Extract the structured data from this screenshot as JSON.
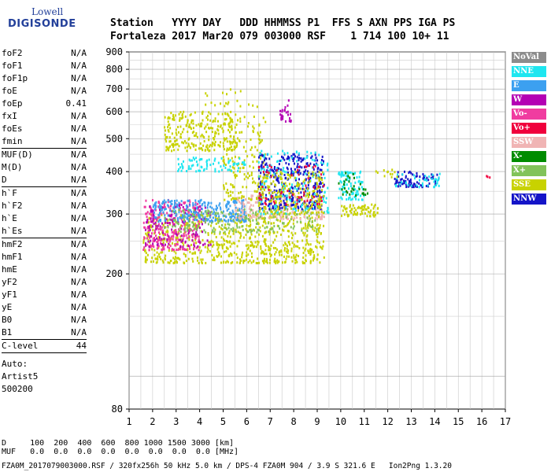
{
  "logo": {
    "line1": "Lowell",
    "line2": "DIGISONDE"
  },
  "header": {
    "line1": "Station   YYYY DAY   DDD HHMMSS P1  FFS S AXN PPS IGA PS",
    "line2": "Fortaleza 2017 Mar20 079 003000 RSF    1 714 100 10+ 11"
  },
  "params": {
    "group1": [
      {
        "k": "foF2",
        "v": "N/A"
      },
      {
        "k": "foF1",
        "v": "N/A"
      },
      {
        "k": "foF1p",
        "v": "N/A"
      },
      {
        "k": "foE",
        "v": "N/A"
      },
      {
        "k": "foEp",
        "v": "0.41"
      },
      {
        "k": "fxI",
        "v": "N/A"
      },
      {
        "k": "foEs",
        "v": "N/A"
      },
      {
        "k": "fmin",
        "v": "N/A"
      }
    ],
    "group2": [
      {
        "k": "MUF(D)",
        "v": "N/A"
      },
      {
        "k": "M(D)",
        "v": "N/A"
      },
      {
        "k": "D",
        "v": "N/A"
      }
    ],
    "group3": [
      {
        "k": "h`F",
        "v": "N/A"
      },
      {
        "k": "h`F2",
        "v": "N/A"
      },
      {
        "k": "h`E",
        "v": "N/A"
      },
      {
        "k": "h`Es",
        "v": "N/A"
      }
    ],
    "group4": [
      {
        "k": "hmF2",
        "v": "N/A"
      },
      {
        "k": "hmF1",
        "v": "N/A"
      },
      {
        "k": "hmE",
        "v": "N/A"
      },
      {
        "k": "yF2",
        "v": "N/A"
      },
      {
        "k": "yF1",
        "v": "N/A"
      },
      {
        "k": "yE",
        "v": "N/A"
      },
      {
        "k": "B0",
        "v": "N/A"
      },
      {
        "k": "B1",
        "v": "N/A"
      }
    ],
    "clevel": {
      "k": "C-level",
      "v": "44"
    },
    "auto": [
      "Auto:",
      "Artist5",
      "500200"
    ]
  },
  "footer": {
    "line1": "D     100  200  400  600  800 1000 1500 3000 [km]",
    "line2": "MUF   0.0  0.0  0.0  0.0  0.0  0.0  0.0  0.0 [MHz]",
    "line3": "FZA0M_2017079003000.RSF / 320fx256h 50 kHz 5.0 km / DPS-4 FZA0M 904 / 3.9 S 321.6 E   Ion2Png 1.3.20"
  },
  "legend": [
    {
      "label": "NoVal",
      "color": "#8c8c8c"
    },
    {
      "label": "NNE",
      "color": "#1ee6f0"
    },
    {
      "label": "E",
      "color": "#3ca0f0"
    },
    {
      "label": "W",
      "color": "#b400b4"
    },
    {
      "label": "Vo-",
      "color": "#f03ca0"
    },
    {
      "label": "Vo+",
      "color": "#f0003c"
    },
    {
      "label": "SSW",
      "color": "#f0b4b4"
    },
    {
      "label": "X-",
      "color": "#008c00"
    },
    {
      "label": "X+",
      "color": "#82c35a"
    },
    {
      "label": "SSE",
      "color": "#c8d200"
    },
    {
      "label": "NNW",
      "color": "#1414c8"
    }
  ],
  "chart_data": {
    "type": "scatter",
    "title": "",
    "xlabel": "",
    "ylabel": "",
    "xlim": [
      1,
      17
    ],
    "ylim": [
      80,
      900
    ],
    "y_scale": "log",
    "x_ticks": [
      1,
      2,
      3,
      4,
      5,
      6,
      7,
      8,
      9,
      10,
      11,
      12,
      13,
      14,
      15,
      16,
      17
    ],
    "y_ticks": [
      80,
      200,
      300,
      400,
      500,
      600,
      700,
      800,
      900
    ],
    "grid": true,
    "legend_position": "right",
    "clusters": [
      {
        "name": "SSE",
        "color": "#c8d200",
        "x": [
          1.6,
          9.3
        ],
        "y": [
          215,
          300
        ],
        "n": 700
      },
      {
        "name": "Vo-",
        "color": "#f03ca0",
        "x": [
          1.6,
          4.0
        ],
        "y": [
          235,
          330
        ],
        "n": 260
      },
      {
        "name": "W",
        "color": "#b400b4",
        "x": [
          1.7,
          4.5
        ],
        "y": [
          240,
          320
        ],
        "n": 140
      },
      {
        "name": "E",
        "color": "#3ca0f0",
        "x": [
          2.0,
          6.0
        ],
        "y": [
          285,
          330
        ],
        "n": 260
      },
      {
        "name": "SSW",
        "color": "#f0b4b4",
        "x": [
          5.5,
          9.3
        ],
        "y": [
          290,
          340
        ],
        "n": 200
      },
      {
        "name": "X+",
        "color": "#82c35a",
        "x": [
          2.5,
          9.0
        ],
        "y": [
          265,
          310
        ],
        "n": 180
      },
      {
        "name": "SSE",
        "color": "#c8d200",
        "x": [
          2.5,
          5.6
        ],
        "y": [
          460,
          600
        ],
        "n": 260
      },
      {
        "name": "SSE",
        "color": "#c8d200",
        "x": [
          5.0,
          6.8
        ],
        "y": [
          330,
          580
        ],
        "n": 180
      },
      {
        "name": "NNE",
        "color": "#1ee6f0",
        "x": [
          3.0,
          6.0
        ],
        "y": [
          400,
          440
        ],
        "n": 80
      },
      {
        "name": "NNW",
        "color": "#1414c8",
        "x": [
          6.5,
          9.3
        ],
        "y": [
          310,
          450
        ],
        "n": 360
      },
      {
        "name": "NNE",
        "color": "#1ee6f0",
        "x": [
          6.5,
          9.5
        ],
        "y": [
          300,
          460
        ],
        "n": 160
      },
      {
        "name": "SSE",
        "color": "#c8d200",
        "x": [
          6.5,
          9.3
        ],
        "y": [
          300,
          400
        ],
        "n": 200
      },
      {
        "name": "Vo+",
        "color": "#f0003c",
        "x": [
          6.5,
          9.3
        ],
        "y": [
          320,
          420
        ],
        "n": 60
      },
      {
        "name": "NNE",
        "color": "#1ee6f0",
        "x": [
          9.9,
          11.0
        ],
        "y": [
          330,
          400
        ],
        "n": 90
      },
      {
        "name": "X-",
        "color": "#008c00",
        "x": [
          9.9,
          11.2
        ],
        "y": [
          340,
          400
        ],
        "n": 30
      },
      {
        "name": "SSE",
        "color": "#c8d200",
        "x": [
          10.0,
          11.6
        ],
        "y": [
          295,
          320
        ],
        "n": 70
      },
      {
        "name": "NNW",
        "color": "#1414c8",
        "x": [
          12.3,
          14.2
        ],
        "y": [
          360,
          400
        ],
        "n": 90
      },
      {
        "name": "NNE",
        "color": "#1ee6f0",
        "x": [
          12.3,
          14.3
        ],
        "y": [
          360,
          395
        ],
        "n": 40
      },
      {
        "name": "SSE",
        "color": "#c8d200",
        "x": [
          11.5,
          12.5
        ],
        "y": [
          385,
          405
        ],
        "n": 12
      },
      {
        "name": "Vo+",
        "color": "#f0003c",
        "x": [
          16.2,
          16.4
        ],
        "y": [
          383,
          395
        ],
        "n": 3
      },
      {
        "name": "W",
        "color": "#b400b4",
        "x": [
          7.4,
          7.9
        ],
        "y": [
          560,
          660
        ],
        "n": 25
      },
      {
        "name": "SSE",
        "color": "#c8d200",
        "x": [
          4.2,
          6.8
        ],
        "y": [
          620,
          700
        ],
        "n": 20
      }
    ]
  }
}
